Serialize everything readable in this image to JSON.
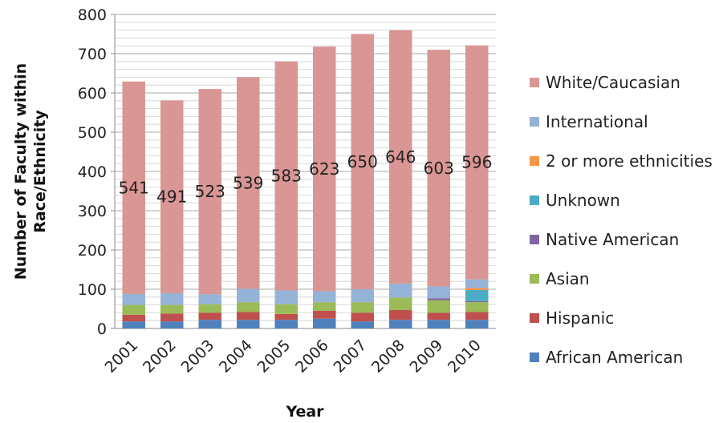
{
  "chart_data": {
    "type": "bar",
    "stacked": true,
    "title": "",
    "xlabel": "Year",
    "ylabel": "Number of Faculty within Race/Ethnicity",
    "ylim": [
      0,
      800
    ],
    "ytick_step": 100,
    "grid": true,
    "legend_position": "right",
    "categories": [
      "2001",
      "2002",
      "2003",
      "2004",
      "2005",
      "2006",
      "2007",
      "2008",
      "2009",
      "2010"
    ],
    "series": [
      {
        "name": "African American",
        "color": "#4f81bd",
        "values": [
          18,
          18,
          22,
          22,
          22,
          25,
          18,
          22,
          22,
          22
        ]
      },
      {
        "name": "Hispanic",
        "color": "#c0504d",
        "values": [
          17,
          20,
          18,
          20,
          15,
          20,
          22,
          25,
          18,
          20
        ]
      },
      {
        "name": "Asian",
        "color": "#9bbb59",
        "values": [
          25,
          22,
          22,
          25,
          25,
          22,
          27,
          32,
          32,
          25
        ]
      },
      {
        "name": "Native American",
        "color": "#8064a2",
        "values": [
          0,
          0,
          0,
          0,
          0,
          0,
          0,
          0,
          5,
          3
        ]
      },
      {
        "name": "Unknown",
        "color": "#4bacc6",
        "values": [
          0,
          0,
          0,
          0,
          0,
          0,
          0,
          0,
          0,
          28
        ]
      },
      {
        "name": "2 or more ethnicities",
        "color": "#f79646",
        "values": [
          0,
          0,
          0,
          0,
          0,
          0,
          0,
          0,
          0,
          5
        ]
      },
      {
        "name": "International",
        "color": "#95b3d7",
        "values": [
          28,
          30,
          25,
          34,
          35,
          28,
          33,
          35,
          30,
          22
        ]
      },
      {
        "name": "White/Caucasian",
        "color": "#d99694",
        "values": [
          541,
          491,
          523,
          539,
          583,
          623,
          650,
          646,
          603,
          596
        ]
      }
    ],
    "data_labels": {
      "series": "White/Caucasian",
      "values": [
        "541",
        "491",
        "523",
        "539",
        "583",
        "623",
        "650",
        "646",
        "603",
        "596"
      ]
    },
    "legend_order": [
      "White/Caucasian",
      "International",
      "2 or more ethnicities",
      "Unknown",
      "Native American",
      "Asian",
      "Hispanic",
      "African American"
    ]
  }
}
